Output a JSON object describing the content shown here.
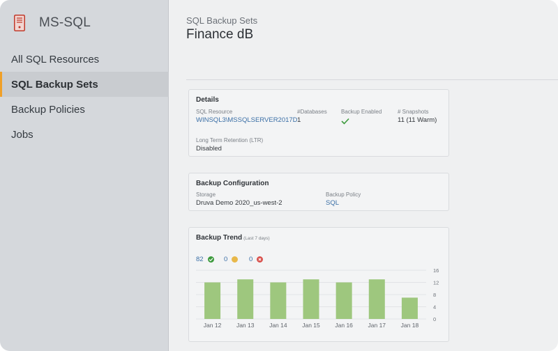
{
  "sidebar": {
    "app_name": "MS-SQL",
    "items": [
      {
        "label": "All SQL Resources"
      },
      {
        "label": "SQL Backup Sets"
      },
      {
        "label": "Backup Policies"
      },
      {
        "label": "Jobs"
      }
    ],
    "active_index": 1
  },
  "header": {
    "breadcrumb": "SQL Backup Sets",
    "title": "Finance dB"
  },
  "details": {
    "title": "Details",
    "sql_resource_label": "SQL Resource",
    "sql_resource_value": "WINSQL3\\MSSQLSERVER2017D",
    "databases_label": "#Databases",
    "databases_value": "1",
    "backup_enabled_label": "Backup Enabled",
    "snapshots_label": "# Snapshots",
    "snapshots_value": "11 (11 Warm)",
    "ltr_label": "Long Term Retention (LTR)",
    "ltr_value": "Disabled"
  },
  "backup_config": {
    "title": "Backup Configuration",
    "storage_label": "Storage",
    "storage_value": "Druva Demo 2020_us-west-2",
    "policy_label": "Backup Policy",
    "policy_value": "SQL"
  },
  "backup_trend": {
    "title": "Backup Trend",
    "subtitle": "(Last 7 days)",
    "success_count": "82",
    "warning_count": "0",
    "failed_count": "0",
    "colors": {
      "success": "#3d9a3d",
      "warning": "#e8b84a",
      "failed": "#d9534f",
      "bar": "#9ec77e"
    }
  },
  "chart_data": {
    "type": "bar",
    "categories": [
      "Jan 12",
      "Jan 13",
      "Jan 14",
      "Jan 15",
      "Jan 16",
      "Jan 17",
      "Jan 18"
    ],
    "values": [
      12,
      13,
      12,
      13,
      12,
      13,
      7
    ],
    "ylim": [
      0,
      16
    ],
    "yticks": [
      0,
      4,
      8,
      12,
      16
    ],
    "grid": true,
    "xlabel": "",
    "ylabel": ""
  }
}
